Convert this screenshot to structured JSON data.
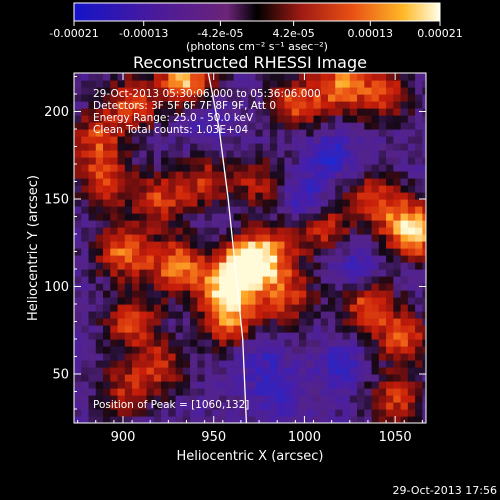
{
  "chart_data": {
    "type": "heatmap",
    "title": "Reconstructed RHESSI Image",
    "xlabel": "Heliocentric X (arcsec)",
    "ylabel": "Heliocentric Y (arcsec)",
    "xlim": [
      873,
      1067
    ],
    "ylim": [
      22,
      222
    ],
    "xticks": [
      900,
      950,
      1000,
      1050
    ],
    "yticks": [
      50,
      100,
      150,
      200
    ],
    "colorbar": {
      "min": -0.00021,
      "max": 0.00021,
      "ticks": [
        -0.00021,
        -0.00013,
        -4.2e-05,
        4.2e-05,
        0.00013,
        0.00021
      ],
      "tick_labels": [
        "-0.00021",
        "-0.00013",
        "-4.2e-05",
        "4.2e-05",
        "0.00013",
        "0.00021"
      ],
      "unit_label": "(photons cm⁻² s⁻¹ asec⁻²)"
    },
    "annotations": [
      "29-Oct-2013 05:30:06.000 to 05:36:06.000",
      "Detectors: 3F 5F 6F 7F 8F 9F, Att 0",
      "Energy Range: 25.0 - 50.0 keV",
      "Clean    Total counts: 1.03E+04"
    ],
    "peak_label": "Position of Peak = [1060,132]",
    "peak_position": [
      1060,
      132
    ],
    "limb_points": [
      [
        947,
        222
      ],
      [
        953,
        190
      ],
      [
        958,
        150
      ],
      [
        962,
        110
      ],
      [
        966,
        70
      ],
      [
        968,
        22
      ]
    ],
    "hot_spots": [
      {
        "x": 935,
        "y": 218,
        "v": 0.85
      },
      {
        "x": 905,
        "y": 205,
        "v": 0.6
      },
      {
        "x": 885,
        "y": 185,
        "v": 0.55
      },
      {
        "x": 890,
        "y": 160,
        "v": 0.6
      },
      {
        "x": 920,
        "y": 150,
        "v": 0.55
      },
      {
        "x": 945,
        "y": 160,
        "v": 0.5
      },
      {
        "x": 900,
        "y": 120,
        "v": 0.7
      },
      {
        "x": 930,
        "y": 112,
        "v": 0.75
      },
      {
        "x": 965,
        "y": 110,
        "v": 0.9
      },
      {
        "x": 980,
        "y": 120,
        "v": 0.7
      },
      {
        "x": 955,
        "y": 95,
        "v": 0.6
      },
      {
        "x": 960,
        "y": 78,
        "v": 0.55
      },
      {
        "x": 905,
        "y": 80,
        "v": 0.6
      },
      {
        "x": 920,
        "y": 55,
        "v": 0.5
      },
      {
        "x": 900,
        "y": 40,
        "v": 0.45
      },
      {
        "x": 995,
        "y": 205,
        "v": 0.6
      },
      {
        "x": 1020,
        "y": 215,
        "v": 0.7
      },
      {
        "x": 1045,
        "y": 210,
        "v": 0.55
      },
      {
        "x": 1060,
        "y": 132,
        "v": 1.0
      },
      {
        "x": 1040,
        "y": 150,
        "v": 0.6
      },
      {
        "x": 1010,
        "y": 135,
        "v": 0.55
      },
      {
        "x": 990,
        "y": 95,
        "v": 0.6
      },
      {
        "x": 1035,
        "y": 90,
        "v": 0.65
      },
      {
        "x": 1055,
        "y": 70,
        "v": 0.6
      },
      {
        "x": 1050,
        "y": 35,
        "v": 0.55
      },
      {
        "x": 975,
        "y": 160,
        "v": 0.45
      }
    ],
    "cold_spots": [
      {
        "x": 1000,
        "y": 150,
        "v": 0.7
      },
      {
        "x": 1015,
        "y": 175,
        "v": 0.6
      },
      {
        "x": 1030,
        "y": 110,
        "v": 0.55
      },
      {
        "x": 985,
        "y": 40,
        "v": 0.5
      },
      {
        "x": 975,
        "y": 60,
        "v": 0.45
      },
      {
        "x": 1020,
        "y": 55,
        "v": 0.5
      },
      {
        "x": 945,
        "y": 195,
        "v": 0.35
      }
    ]
  },
  "footer": {
    "timestamp": "29-Oct-2013 17:56"
  }
}
